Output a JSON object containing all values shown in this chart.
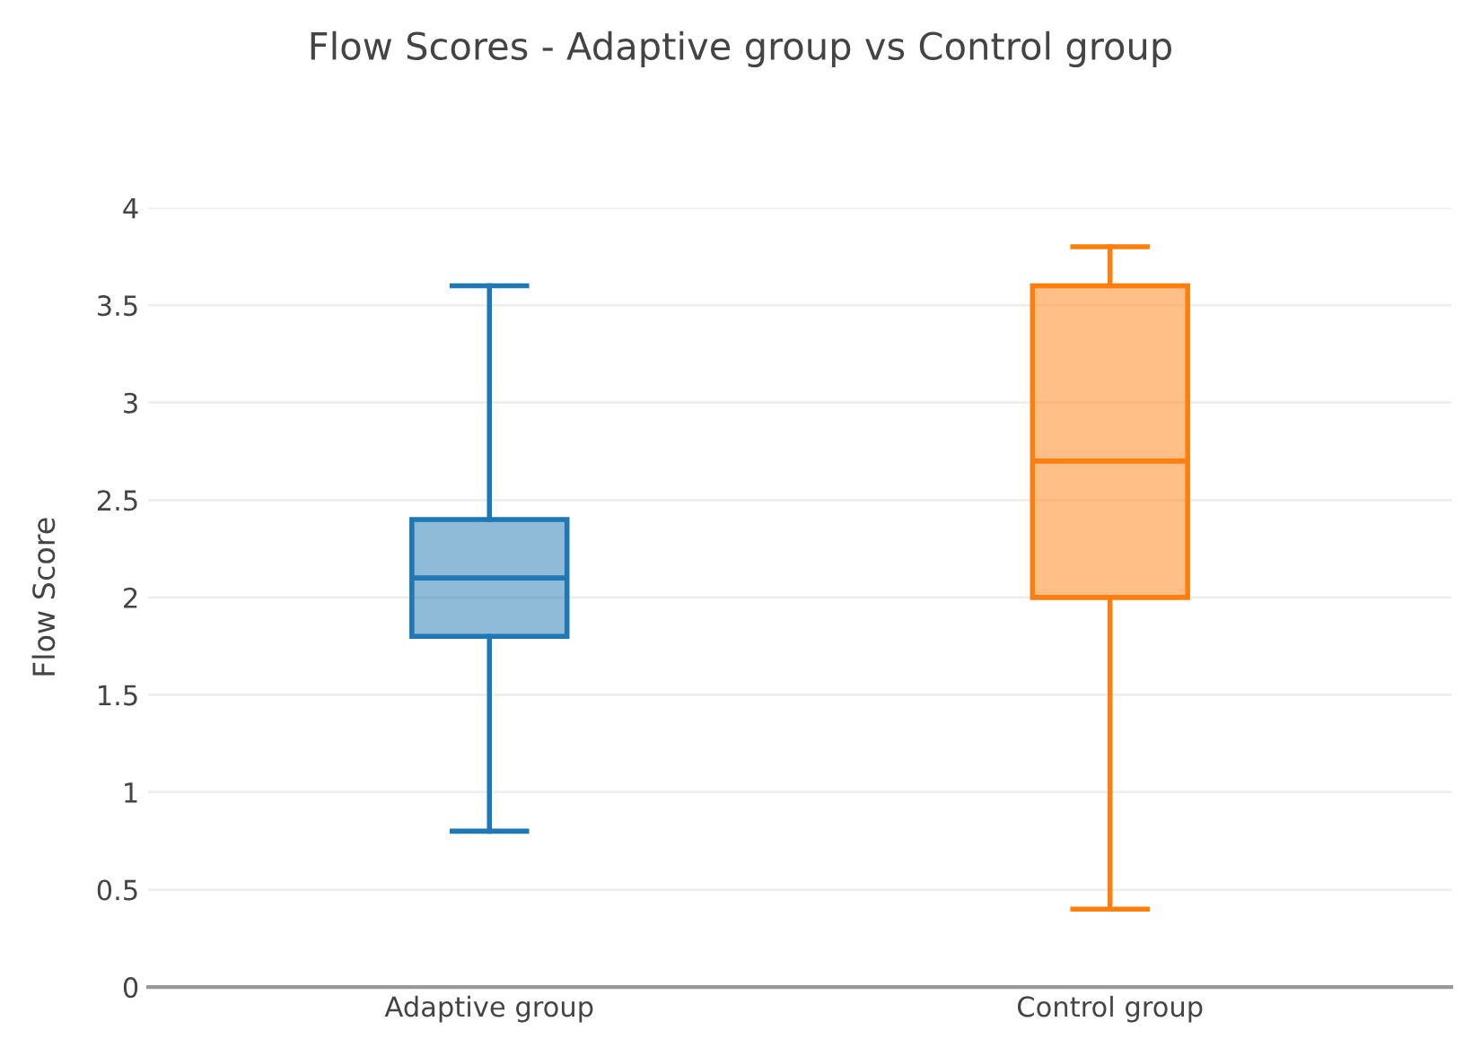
{
  "chart_data": {
    "type": "box",
    "title": "Flow Scores - Adaptive group vs Control group",
    "ylabel": "Flow Score",
    "categories": [
      "Adaptive group",
      "Control group"
    ],
    "boxes": [
      {
        "low": 0.8,
        "q1": 1.8,
        "median": 2.1,
        "q3": 2.4,
        "high": 3.6
      },
      {
        "low": 0.4,
        "q1": 2.0,
        "median": 2.7,
        "q3": 3.6,
        "high": 3.8
      }
    ],
    "colors": [
      "#1f77b4",
      "#ff7f0e"
    ],
    "ylim": [
      0,
      4
    ],
    "yticks": [
      0,
      0.5,
      1,
      1.5,
      2,
      2.5,
      3,
      3.5,
      4
    ],
    "grid": "y"
  }
}
